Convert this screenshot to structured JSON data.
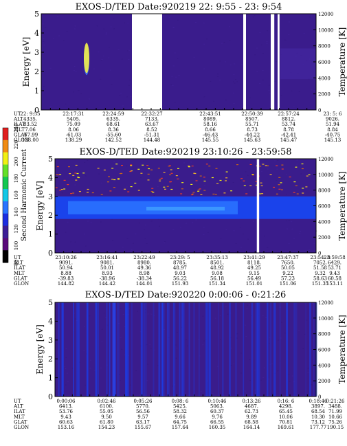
{
  "chart_data": [
    {
      "type": "heatmap",
      "title": "EXOS-D/TED   Date:920219  22: 9:55 - 23: 9:54",
      "ylabel": "Energy [eV]",
      "ylabel_right": "Temperature [K]",
      "ylim": [
        0,
        5
      ],
      "ylim_right": [
        0,
        12000
      ],
      "y_ticks": [
        "0",
        "1",
        "2",
        "3",
        "4",
        "5"
      ],
      "y2_ticks": [
        "0",
        "2000",
        "4000",
        "6000",
        "8000",
        "10000",
        "12000"
      ],
      "background": "#3a1c8c",
      "gaps_time_fraction": [
        [
          0.33,
          0.44
        ],
        [
          0.735,
          0.745
        ],
        [
          0.835,
          0.848
        ],
        [
          0.86,
          0.867
        ]
      ],
      "blobs": [
        {
          "t": 0.165,
          "energy": 2.6,
          "color": "#3d73ff"
        },
        {
          "t": 0.165,
          "energy": 2.7,
          "color": "#f5f046"
        }
      ],
      "row_labels": [
        "UT",
        "ALT",
        "ILAT",
        "MLT",
        "GLAT",
        "GLON"
      ],
      "columns": [
        [
          "22: 9:55",
          "4335.",
          "83.52",
          "7.06",
          "-67.99",
          "128.00"
        ],
        [
          "22:17:31",
          "5405.",
          "75.09",
          "8.06",
          "-61.03",
          "138.29"
        ],
        [
          "22:24:59",
          "6335.",
          "68.61",
          "8.36",
          "-55.60",
          "142.52"
        ],
        [
          "22:32:27",
          "7133.",
          "63.67",
          "8.52",
          "-51.31",
          "144.48"
        ],
        [
          "22:43:51",
          "8089.",
          "58.16",
          "8.66",
          "-46.43",
          "145.55"
        ],
        [
          "22:50:39",
          "8507.",
          "55.71",
          "8.73",
          "-44.22",
          "145.63"
        ],
        [
          "22:57:24",
          "8812.",
          "53.74",
          "8.78",
          "-42.41",
          "145.47"
        ],
        [
          "23: 5: 6",
          "9026.",
          "51.94",
          "8.84",
          "-40.75",
          "145.13"
        ]
      ]
    },
    {
      "type": "heatmap",
      "title": "EXOS-D/TED   Date:920219  23:10:26 - 23:59:58",
      "ylabel": "Energy [eV]",
      "ylabel_right": "Temperature [K]",
      "ylim": [
        0,
        5
      ],
      "ylim_right": [
        0,
        12000
      ],
      "y_ticks": [
        "0",
        "1",
        "2",
        "3",
        "4",
        "5"
      ],
      "y2_ticks": [
        "0",
        "2000",
        "4000",
        "6000",
        "8000",
        "10000",
        "12000"
      ],
      "background": "#3a1c8c",
      "band_energy_range": [
        1.8,
        3.0
      ],
      "band_color": "#1846f0",
      "gaps_time_fraction": [
        [
          0.773,
          0.782
        ]
      ],
      "row_labels": [
        "UT",
        "ALT",
        "ILAT",
        "MLT",
        "GLAT",
        "GLON"
      ],
      "columns": [
        [
          "23:10:26",
          "9091.",
          "50.94",
          "8.88",
          "-39.83",
          "144.82"
        ],
        [
          "23:16:41",
          "9081.",
          "50.01",
          "8.93",
          "-38.96",
          "144.42"
        ],
        [
          "23:22:49",
          "8980.",
          "49.36",
          "8.98",
          "-38.34",
          "144.01"
        ],
        [
          "23:29: 5",
          "8785.",
          "48.97",
          "9.03",
          "56.22",
          "151.93"
        ],
        [
          "23:35:13",
          "8501.",
          "48.92",
          "9.08",
          "56.18",
          "151.34"
        ],
        [
          "23:41:29",
          "8118.",
          "49.25",
          "9.15",
          "56.49",
          "151.01"
        ],
        [
          "23:47:37",
          "7650.",
          "50.05",
          "9.22",
          "57.23",
          "151.06"
        ],
        [
          "23:54: 8",
          "7052.",
          "51.58",
          "9.32",
          "58.63",
          "151.35"
        ],
        [
          "23:59:58",
          "6429.",
          "53.71",
          "9.43",
          "60.58",
          "153.11"
        ]
      ]
    },
    {
      "type": "heatmap",
      "title": "EXOS-D/TED   Date:920220   0:00:06 -  0:21:26",
      "ylabel": "Energy [eV]",
      "ylabel_right": "Temperature [K]",
      "ylim": [
        0,
        5
      ],
      "ylim_right": [
        0,
        12000
      ],
      "y_ticks": [
        "0",
        "1",
        "2",
        "3",
        "4",
        "5"
      ],
      "y2_ticks": [
        "0",
        "2000",
        "4000",
        "6000",
        "8000",
        "10000",
        "12000"
      ],
      "background": "#3a1c8c",
      "streak_color": "#1c3ce6",
      "row_labels": [
        "UT",
        "ALT",
        "ILAT",
        "MLT",
        "GLAT",
        "GLON"
      ],
      "columns": [
        [
          "0:00:06",
          "6413.",
          "53.76",
          "9.43",
          "60.63",
          "153.16"
        ],
        [
          "0:02:46",
          "6100.",
          "55.05",
          "9.50",
          "61.80",
          "154.23"
        ],
        [
          "0:05:26",
          "5770.",
          "56.56",
          "9.57",
          "63.17",
          "155.67"
        ],
        [
          "0:08: 6",
          "5425.",
          "58.32",
          "9.66",
          "64.75",
          "157.64"
        ],
        [
          "0:10:46",
          "5063.",
          "60.37",
          "9.76",
          "66.55",
          "160.35"
        ],
        [
          "0:13:26",
          "4687.",
          "62.73",
          "9.89",
          "68.58",
          "164.14"
        ],
        [
          "0:16: 6",
          "4298.",
          "65.45",
          "10.06",
          "70.81",
          "169.61"
        ],
        [
          "0:18:46",
          "3897.",
          "68.54",
          "10.30",
          "73.12",
          "177.77"
        ],
        [
          "0:21:26",
          "3488.",
          "71.99",
          "10.66",
          "75.26",
          "190.15"
        ]
      ]
    }
  ],
  "colorbar": {
    "label": "Second Harmonic Current",
    "ticks": [
      "80",
      "100",
      "120",
      "140",
      "160",
      "180",
      "200",
      "220",
      "240"
    ],
    "colors": [
      "#000000",
      "#5a0a7a",
      "#3c1e96",
      "#1c2ee0",
      "#2a74ff",
      "#12c8e6",
      "#14c850",
      "#64e028",
      "#f0f014",
      "#f08c14",
      "#e01e1e"
    ]
  }
}
